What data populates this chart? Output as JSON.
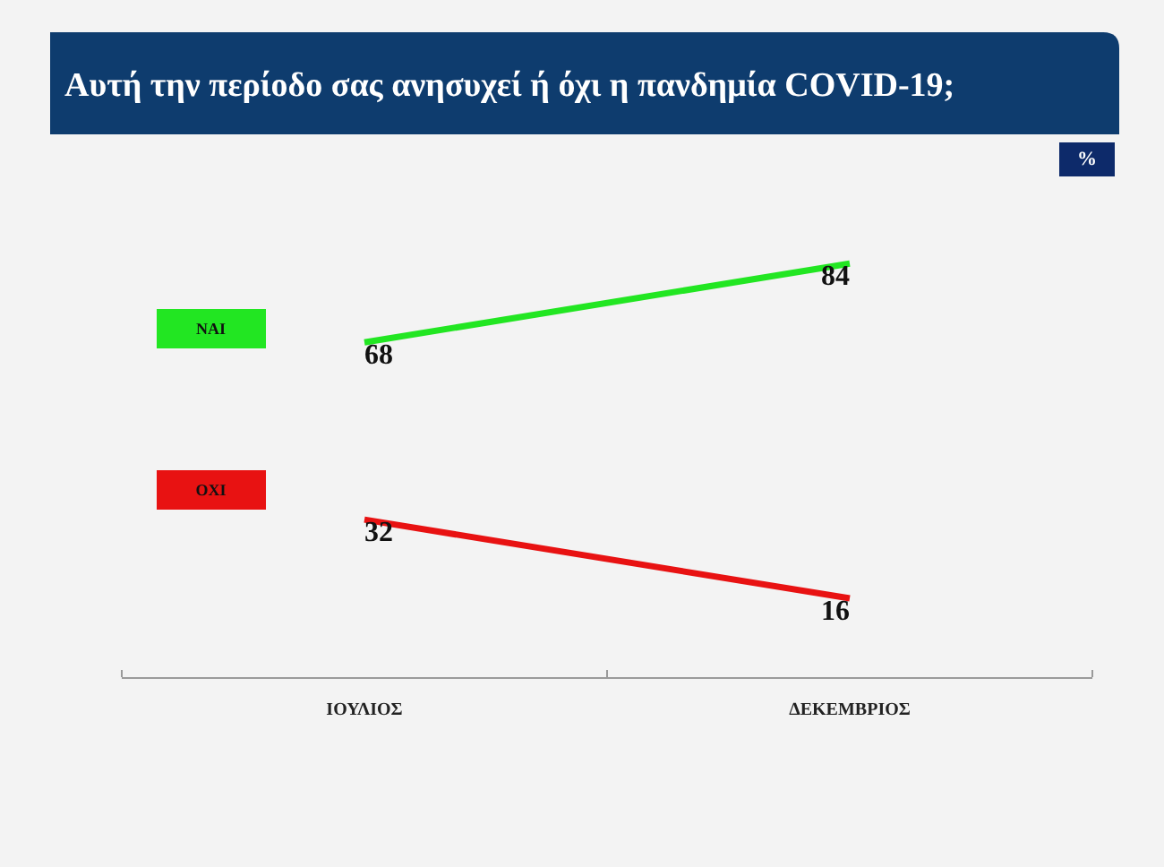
{
  "chart_data": {
    "type": "line",
    "title": "Αυτή την περίοδο σας ανησυχεί ή όχι η πανδημία COVID-19;",
    "annotations": [
      "%"
    ],
    "categories": [
      "ΙΟΥΛΙΟΣ",
      "ΔΕΚΕΜΒΡΙΟΣ"
    ],
    "series": [
      {
        "name": "ΝΑΙ",
        "color": "#22e622",
        "values": [
          68,
          84
        ]
      },
      {
        "name": "ΟΧΙ",
        "color": "#e81212",
        "values": [
          32,
          16
        ]
      }
    ],
    "tick_labels": "x",
    "data_labels": true,
    "legend": "left"
  }
}
